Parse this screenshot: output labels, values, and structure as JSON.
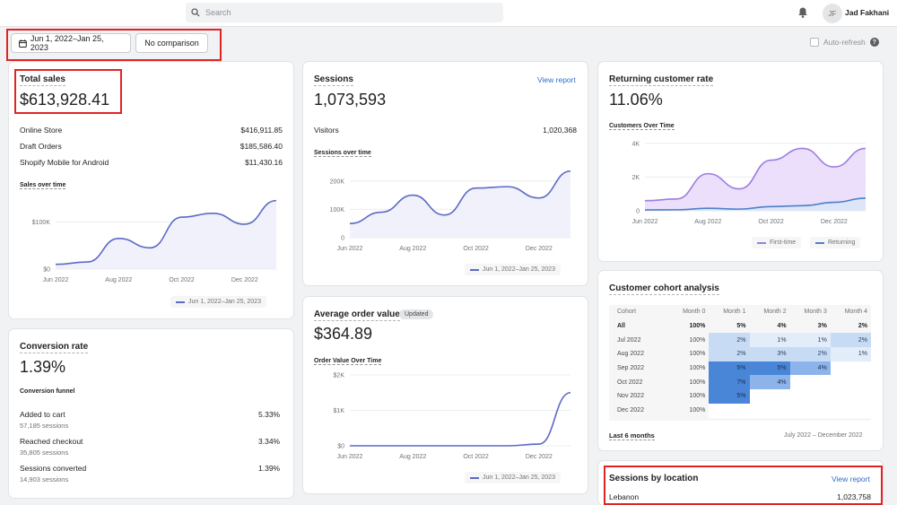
{
  "topbar": {
    "search_placeholder": "Search",
    "user_initials": "JF",
    "user_name": "Jad Fakhani"
  },
  "filters": {
    "date_range": "Jun 1, 2022–Jan 25, 2023",
    "comparison": "No comparison",
    "auto_refresh": "Auto-refresh"
  },
  "total_sales": {
    "title": "Total sales",
    "value": "$613,928.41",
    "rows": [
      {
        "label": "Online Store",
        "value": "$416,911.85"
      },
      {
        "label": "Draft Orders",
        "value": "$185,586.40"
      },
      {
        "label": "Shopify Mobile for Android",
        "value": "$11,430.16"
      }
    ],
    "chart_title": "Sales over time",
    "legend": "Jun 1, 2022–Jan 25, 2023"
  },
  "sessions": {
    "title": "Sessions",
    "link": "View report",
    "value": "1,073,593",
    "visitors_label": "Visitors",
    "visitors_value": "1,020,368",
    "chart_title": "Sessions over time",
    "legend": "Jun 1, 2022–Jan 25, 2023"
  },
  "returning": {
    "title": "Returning customer rate",
    "value": "11.06%",
    "chart_title": "Customers Over Time",
    "legend_first": "First-time",
    "legend_returning": "Returning"
  },
  "conversion": {
    "title": "Conversion rate",
    "value": "1.39%",
    "funnel_title": "Conversion funnel",
    "steps": [
      {
        "label": "Added to cart",
        "sub": "57,185 sessions",
        "value": "5.33%"
      },
      {
        "label": "Reached checkout",
        "sub": "35,805 sessions",
        "value": "3.34%"
      },
      {
        "label": "Sessions converted",
        "sub": "14,903 sessions",
        "value": "1.39%"
      }
    ]
  },
  "aov": {
    "title": "Average order value",
    "badge": "Updated",
    "value": "$364.89",
    "chart_title": "Order Value Over Time",
    "legend": "Jun 1, 2022–Jan 25, 2023"
  },
  "cohort": {
    "title": "Customer cohort analysis",
    "headers": [
      "Cohort",
      "Month 0",
      "Month 1",
      "Month 2",
      "Month 3",
      "Month 4"
    ],
    "rows": [
      [
        "All",
        "100%",
        "5%",
        "4%",
        "3%",
        "2%"
      ],
      [
        "Jul 2022",
        "100%",
        "2%",
        "1%",
        "1%",
        "2%"
      ],
      [
        "Aug 2022",
        "100%",
        "2%",
        "3%",
        "2%",
        "1%"
      ],
      [
        "Sep 2022",
        "100%",
        "5%",
        "5%",
        "4%",
        ""
      ],
      [
        "Oct 2022",
        "100%",
        "7%",
        "4%",
        "",
        ""
      ],
      [
        "Nov 2022",
        "100%",
        "5%",
        "",
        "",
        ""
      ],
      [
        "Dec 2022",
        "100%",
        "",
        "",
        "",
        ""
      ]
    ],
    "footer_link": "Last 6 months",
    "footer_range": "July 2022 – December 2022"
  },
  "location": {
    "title": "Sessions by location",
    "link": "View report",
    "rows": [
      {
        "label": "Lebanon",
        "value": "1,023,758"
      }
    ]
  },
  "chart_data": [
    {
      "type": "area",
      "title": "Sales over time",
      "x": [
        "Jun 2022",
        "Jul 2022",
        "Aug 2022",
        "Sep 2022",
        "Oct 2022",
        "Nov 2022",
        "Dec 2022",
        "Jan 2023"
      ],
      "x_ticks": [
        "Jun 2022",
        "Aug 2022",
        "Oct 2022",
        "Dec 2022"
      ],
      "y_ticks": [
        "$0",
        "$100K"
      ],
      "series": [
        {
          "name": "Jun 1, 2022–Jan 25, 2023",
          "values": [
            10000,
            15000,
            65000,
            45000,
            110000,
            118000,
            95000,
            145000
          ]
        }
      ],
      "ylim": [
        0,
        150000
      ]
    },
    {
      "type": "area",
      "title": "Sessions over time",
      "x": [
        "Jun 2022",
        "Jul 2022",
        "Aug 2022",
        "Sep 2022",
        "Oct 2022",
        "Nov 2022",
        "Dec 2022",
        "Jan 2023"
      ],
      "x_ticks": [
        "Jun 2022",
        "Aug 2022",
        "Oct 2022",
        "Dec 2022"
      ],
      "y_ticks": [
        "0",
        "100K",
        "200K"
      ],
      "series": [
        {
          "name": "Jun 1, 2022–Jan 25, 2023",
          "values": [
            50000,
            90000,
            150000,
            80000,
            175000,
            180000,
            140000,
            235000
          ]
        }
      ],
      "ylim": [
        0,
        250000
      ]
    },
    {
      "type": "area",
      "title": "Customers Over Time",
      "x": [
        "Jun 2022",
        "Jul 2022",
        "Aug 2022",
        "Sep 2022",
        "Oct 2022",
        "Nov 2022",
        "Dec 2022",
        "Jan 2023"
      ],
      "x_ticks": [
        "Jun 2022",
        "Aug 2022",
        "Oct 2022",
        "Dec 2022"
      ],
      "y_ticks": [
        "0",
        "2K",
        "4K"
      ],
      "series": [
        {
          "name": "First-time",
          "values": [
            600,
            700,
            2200,
            1300,
            3000,
            3700,
            2600,
            3700
          ]
        },
        {
          "name": "Returning",
          "values": [
            50,
            60,
            150,
            100,
            250,
            300,
            500,
            750
          ]
        }
      ],
      "ylim": [
        0,
        4200
      ]
    },
    {
      "type": "line",
      "title": "Order Value Over Time",
      "x": [
        "Jun 2022",
        "Jul 2022",
        "Aug 2022",
        "Sep 2022",
        "Oct 2022",
        "Nov 2022",
        "Dec 2022",
        "Jan 2023"
      ],
      "x_ticks": [
        "Jun 2022",
        "Aug 2022",
        "Oct 2022",
        "Dec 2022"
      ],
      "y_ticks": [
        "$0",
        "$1K",
        "$2K"
      ],
      "series": [
        {
          "name": "Jun 1, 2022–Jan 25, 2023",
          "values": [
            0,
            0,
            0,
            0,
            0,
            0,
            50,
            1500
          ]
        }
      ],
      "ylim": [
        0,
        2000
      ]
    }
  ]
}
